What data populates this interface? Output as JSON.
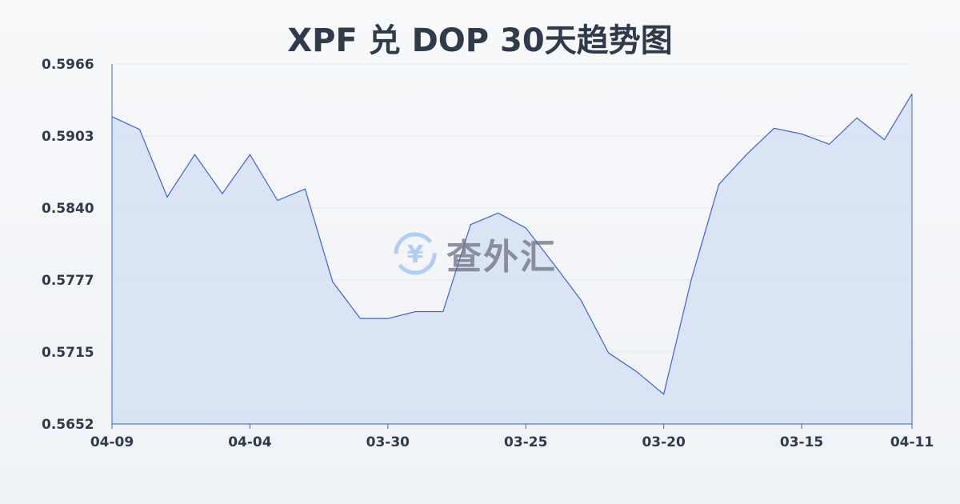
{
  "chart_data": {
    "type": "area",
    "title": "XPF 兑 DOP 30天趋势图",
    "xlabel": "",
    "ylabel": "",
    "x_tick_labels": [
      "04-09",
      "04-04",
      "03-30",
      "03-25",
      "03-20",
      "03-15",
      "04-11"
    ],
    "x_tick_indices": [
      0,
      5,
      10,
      15,
      20,
      25,
      29
    ],
    "y_tick_labels": [
      "0.5966",
      "0.5903",
      "0.5840",
      "0.5777",
      "0.5715",
      "0.5652"
    ],
    "ylim": [
      0.5652,
      0.5966
    ],
    "grid": true,
    "values": [
      0.592,
      0.5909,
      0.585,
      0.5887,
      0.5853,
      0.5887,
      0.5847,
      0.5857,
      0.5776,
      0.5744,
      0.5744,
      0.575,
      0.575,
      0.5826,
      0.5836,
      0.5823,
      0.5792,
      0.576,
      0.5714,
      0.5698,
      0.5678,
      0.5778,
      0.5861,
      0.5887,
      0.591,
      0.5905,
      0.5896,
      0.5919,
      0.59,
      0.594
    ],
    "colors": {
      "line": "#3a66c9",
      "fill": "#d6e0f5"
    }
  },
  "watermark": {
    "text": "查外汇",
    "icon": "yen-exchange-icon"
  }
}
